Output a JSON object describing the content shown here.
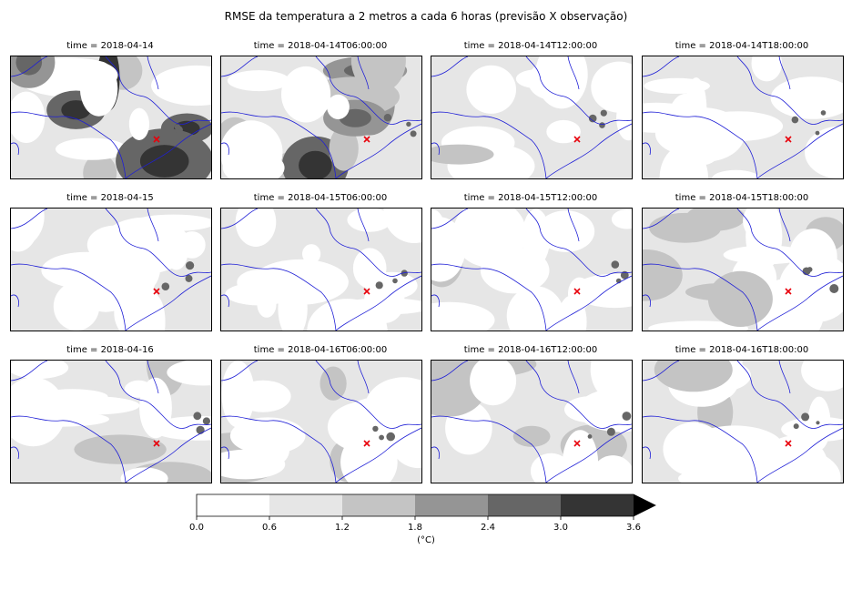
{
  "chart_data": {
    "type": "heatmap",
    "title": "RMSE da temperatura a 2 metros a cada 6 horas (previsão X observação)",
    "panels": [
      {
        "title": "time = 2018-04-14",
        "level": 0.9
      },
      {
        "title": "time = 2018-04-14T06:00:00",
        "level": 0.75
      },
      {
        "title": "time = 2018-04-14T12:00:00",
        "level": 0.35
      },
      {
        "title": "time = 2018-04-14T18:00:00",
        "level": 0.3
      },
      {
        "title": "time = 2018-04-15",
        "level": 0.3
      },
      {
        "title": "time = 2018-04-15T06:00:00",
        "level": 0.25
      },
      {
        "title": "time = 2018-04-15T12:00:00",
        "level": 0.4
      },
      {
        "title": "time = 2018-04-15T18:00:00",
        "level": 0.45
      },
      {
        "title": "time = 2018-04-16",
        "level": 0.45
      },
      {
        "title": "time = 2018-04-16T06:00:00",
        "level": 0.45
      },
      {
        "title": "time = 2018-04-16T12:00:00",
        "level": 0.45
      },
      {
        "title": "time = 2018-04-16T18:00:00",
        "level": 0.4
      }
    ],
    "colorbar": {
      "ticks": [
        "0.0",
        "0.6",
        "1.2",
        "1.8",
        "2.4",
        "3.0",
        "3.6"
      ],
      "colors": [
        "#ffffff",
        "#e6e6e6",
        "#c4c4c4",
        "#959595",
        "#666666",
        "#343434"
      ],
      "extend": "max",
      "extend_color": "#000000",
      "label": "(°C)"
    },
    "marker_color": "#e8000b",
    "border_color": "#1f1fd6"
  }
}
